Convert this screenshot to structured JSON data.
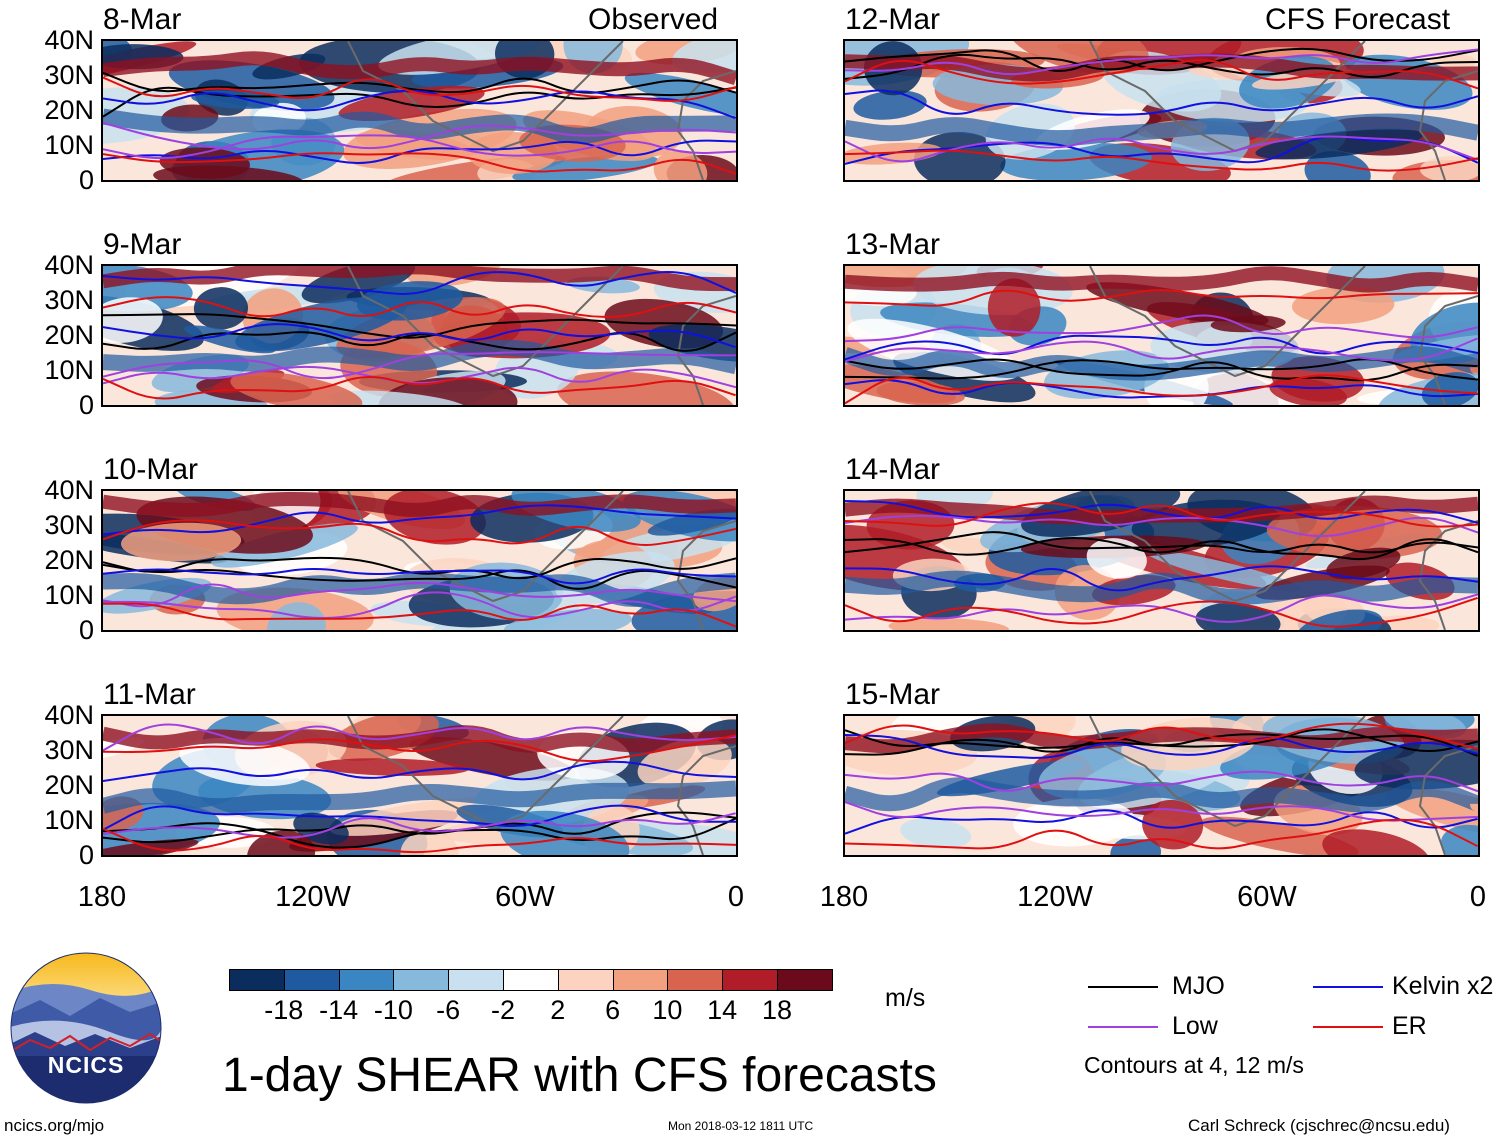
{
  "header": {
    "observed_label": "Observed",
    "forecast_label": "CFS Forecast"
  },
  "panels": [
    {
      "date": "8-Mar",
      "column": "observed",
      "seed": 3
    },
    {
      "date": "9-Mar",
      "column": "observed",
      "seed": 7
    },
    {
      "date": "10-Mar",
      "column": "observed",
      "seed": 11
    },
    {
      "date": "11-Mar",
      "column": "observed",
      "seed": 19
    },
    {
      "date": "12-Mar",
      "column": "forecast",
      "seed": 23
    },
    {
      "date": "13-Mar",
      "column": "forecast",
      "seed": 29
    },
    {
      "date": "14-Mar",
      "column": "forecast",
      "seed": 31
    },
    {
      "date": "15-Mar",
      "column": "forecast",
      "seed": 37
    }
  ],
  "axes": {
    "y_ticks": [
      "40N",
      "30N",
      "20N",
      "10N",
      "0"
    ],
    "x_ticks": [
      "180",
      "120W",
      "60W",
      "0"
    ]
  },
  "colorbar": {
    "tick_labels": [
      "-18",
      "-14",
      "-10",
      "-6",
      "-2",
      "2",
      "6",
      "10",
      "14",
      "18"
    ],
    "colors": [
      "#0a2d5e",
      "#1f5aa0",
      "#3a86c2",
      "#86b9dc",
      "#c8e0ef",
      "#ffffff",
      "#fbd3c0",
      "#f2a07f",
      "#d8644f",
      "#b01c27",
      "#6b0a1a"
    ],
    "units": "m/s"
  },
  "legend": {
    "items": [
      {
        "label": "MJO",
        "color": "#000000"
      },
      {
        "label": "Kelvin x2",
        "color": "#1010e0"
      },
      {
        "label": "Low",
        "color": "#a040e0"
      },
      {
        "label": "ER",
        "color": "#e01010"
      }
    ],
    "note": "Contours at 4, 12 m/s"
  },
  "title": "1-day SHEAR with CFS forecasts",
  "logo": {
    "text": "NCICS"
  },
  "footer": {
    "url": "ncics.org/mjo",
    "timestamp": "Mon 2018-03-12 1811 UTC",
    "credit": "Carl Schreck (cjschrec@ncsu.edu)"
  }
}
